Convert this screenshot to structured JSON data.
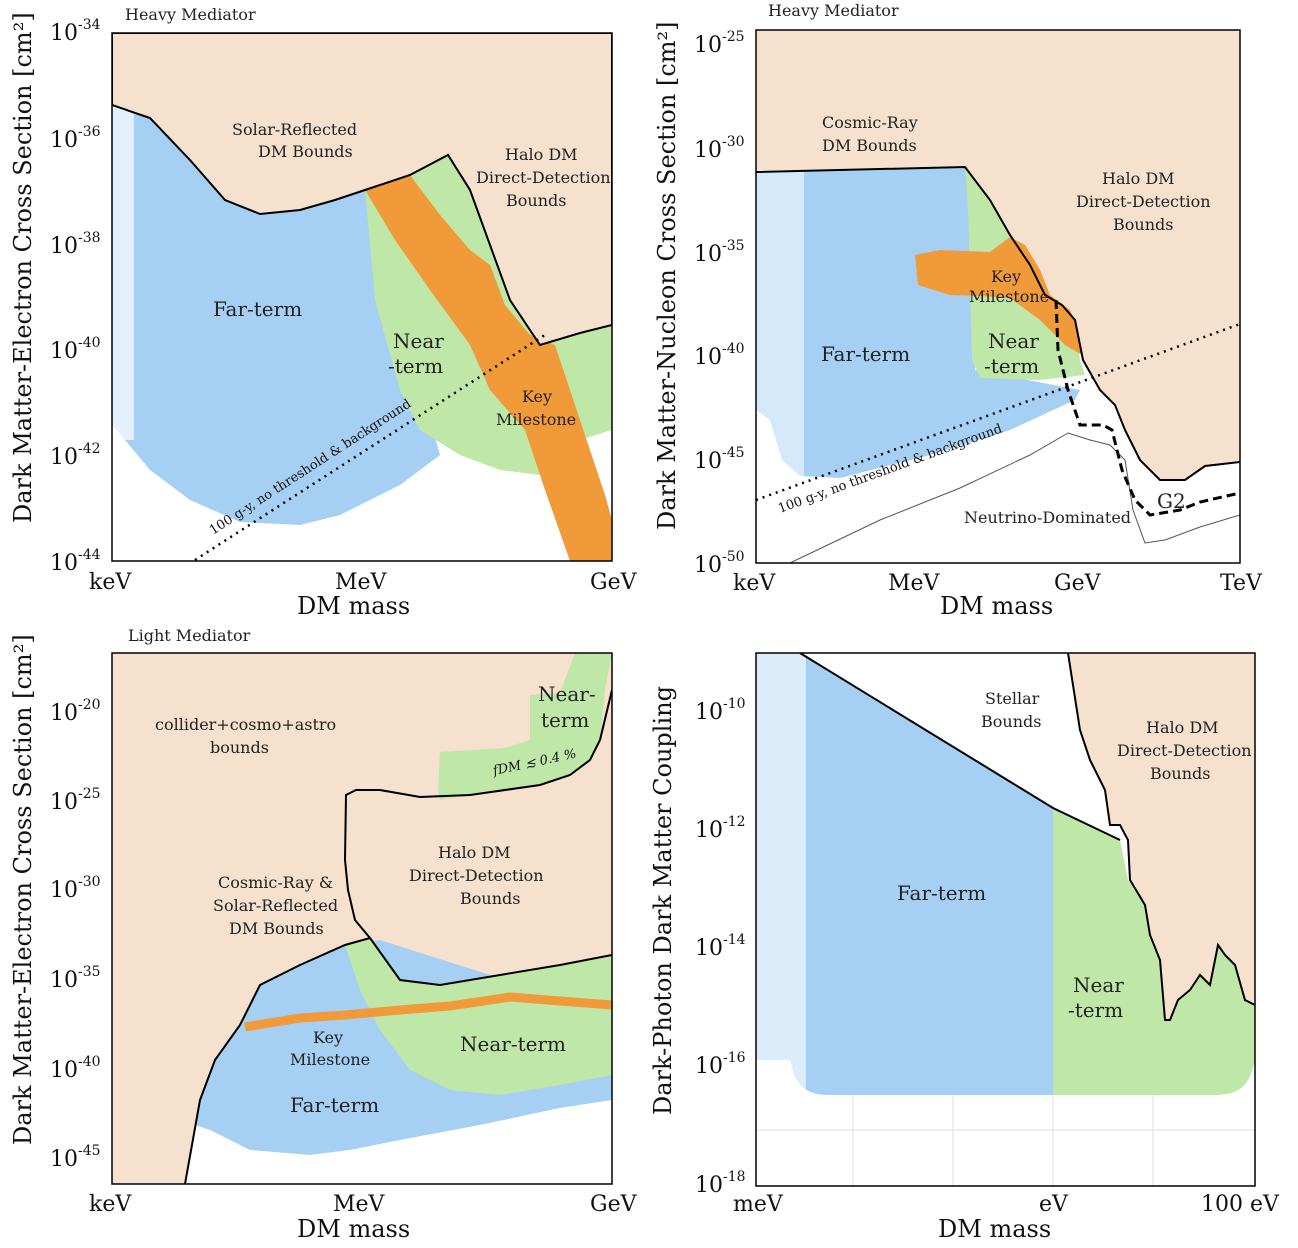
{
  "colors": {
    "bound": "#f5e1cd",
    "far_term": "#a5cff3",
    "near_term": "#bfe7a7",
    "key_milestone": "#f19a3a",
    "frame": "#000000"
  },
  "chart_data": [
    {
      "type": "area",
      "title": "Heavy Mediator",
      "xlabel": "DM mass",
      "ylabel": "Dark Matter-Electron Cross Section [cm²]",
      "x_ticks": [
        "keV",
        "MeV",
        "GeV"
      ],
      "y_ticks": [
        {
          "base": "10",
          "exp": "-34"
        },
        {
          "base": "10",
          "exp": "-36"
        },
        {
          "base": "10",
          "exp": "-38"
        },
        {
          "base": "10",
          "exp": "-40"
        },
        {
          "base": "10",
          "exp": "-42"
        },
        {
          "base": "10",
          "exp": "-44"
        }
      ],
      "ylim": [
        -44,
        -34
      ],
      "regions": [
        "Solar-Reflected DM Bounds",
        "Halo DM Direct-Detection Bounds",
        "Far-term",
        "Near -term",
        "Key Milestone"
      ],
      "labels": {
        "solar1": "Solar-Reflected",
        "solar2": "DM Bounds",
        "halo1": "Halo DM",
        "halo2": "Direct-Detection",
        "halo3": "Bounds",
        "far": "Far-term",
        "near1": "Near",
        "near2": "-term",
        "key1": "Key",
        "key2": "Milestone",
        "line": "100 g-y, no threshold & background"
      }
    },
    {
      "type": "area",
      "title": "Heavy Mediator",
      "xlabel": "DM mass",
      "ylabel": "Dark Matter-Nucleon Cross Section [cm²]",
      "x_ticks": [
        "keV",
        "MeV",
        "GeV",
        "TeV"
      ],
      "y_ticks": [
        {
          "base": "10",
          "exp": "-25"
        },
        {
          "base": "10",
          "exp": "-30"
        },
        {
          "base": "10",
          "exp": "-35"
        },
        {
          "base": "10",
          "exp": "-40"
        },
        {
          "base": "10",
          "exp": "-45"
        },
        {
          "base": "10",
          "exp": "-50"
        }
      ],
      "ylim": [
        -50,
        -25
      ],
      "regions": [
        "Cosmic-Ray DM Bounds",
        "Halo DM Direct-Detection Bounds",
        "Far-term",
        "Near -term",
        "Key Milestone",
        "G2",
        "Neutrino-Dominated"
      ],
      "labels": {
        "cr1": "Cosmic-Ray",
        "cr2": "DM Bounds",
        "halo1": "Halo DM",
        "halo2": "Direct-Detection",
        "halo3": "Bounds",
        "far": "Far-term",
        "near1": "Near",
        "near2": "-term",
        "key1": "Key",
        "key2": "Milestone",
        "g2": "G2",
        "nu": "Neutrino-Dominated",
        "line": "100 g-y, no threshold & background"
      }
    },
    {
      "type": "area",
      "title": "Light Mediator",
      "xlabel": "DM mass",
      "ylabel": "Dark Matter-Electron Cross Section [cm²]",
      "x_ticks": [
        "keV",
        "MeV",
        "GeV"
      ],
      "y_ticks": [
        {
          "base": "10",
          "exp": "-20"
        },
        {
          "base": "10",
          "exp": "-25"
        },
        {
          "base": "10",
          "exp": "-30"
        },
        {
          "base": "10",
          "exp": "-35"
        },
        {
          "base": "10",
          "exp": "-40"
        },
        {
          "base": "10",
          "exp": "-45"
        }
      ],
      "regions": [
        "collider+cosmo+astro bounds",
        "Halo DM Direct-Detection Bounds",
        "Cosmic-Ray & Solar-Reflected DM Bounds",
        "Near-term",
        "Key Milestone",
        "Far-term"
      ],
      "labels": {
        "col1": "collider+cosmo+astro",
        "col2": "bounds",
        "halo1": "Halo DM",
        "halo2": "Direct-Detection",
        "halo3": "Bounds",
        "cr1": "Cosmic-Ray &",
        "cr2": "Solar-Reflected",
        "cr3": "DM Bounds",
        "near_top1": "Near-",
        "near_top2": "term",
        "fdm": "fDM ≲ 0.4 %",
        "near": "Near-term",
        "key1": "Key",
        "key2": "Milestone",
        "far": "Far-term"
      }
    },
    {
      "type": "area",
      "title": "",
      "xlabel": "DM mass",
      "ylabel": "Dark-Photon Dark Matter Coupling",
      "x_ticks": [
        "meV",
        "eV",
        "100 eV"
      ],
      "y_ticks": [
        {
          "base": "10",
          "exp": "-10"
        },
        {
          "base": "10",
          "exp": "-12"
        },
        {
          "base": "10",
          "exp": "-14"
        },
        {
          "base": "10",
          "exp": "-16"
        },
        {
          "base": "10",
          "exp": "-18"
        }
      ],
      "ylim": [
        -18,
        -9
      ],
      "regions": [
        "Stellar Bounds",
        "Halo DM Direct-Detection Bounds",
        "Far-term",
        "Near -term"
      ],
      "labels": {
        "st1": "Stellar",
        "st2": "Bounds",
        "halo1": "Halo DM",
        "halo2": "Direct-Detection",
        "halo3": "Bounds",
        "far": "Far-term",
        "near1": "Near",
        "near2": "-term"
      }
    }
  ]
}
